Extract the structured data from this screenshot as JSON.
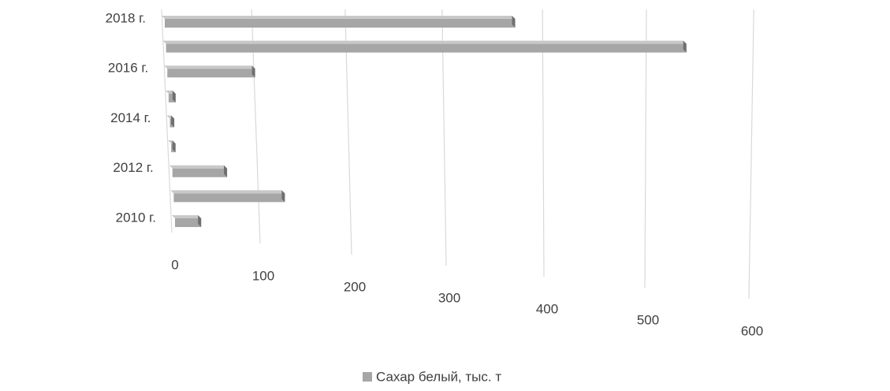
{
  "chart_data": {
    "type": "bar3d",
    "categories": [
      "2010 г.",
      null,
      "2012 г.",
      null,
      "2014 г.",
      null,
      "2016 г.",
      null,
      "2018 г."
    ],
    "series": [
      {
        "name": "Сахар белый, тыс. т",
        "color": "#a6a6a6",
        "values": [
          30,
          125,
          62,
          5,
          5,
          8,
          98,
          535,
          370
        ]
      }
    ],
    "xlim": [
      0,
      600
    ],
    "xticks": [
      0,
      100,
      200,
      300,
      400,
      500,
      600
    ],
    "grid": true,
    "legend": "bottom"
  }
}
